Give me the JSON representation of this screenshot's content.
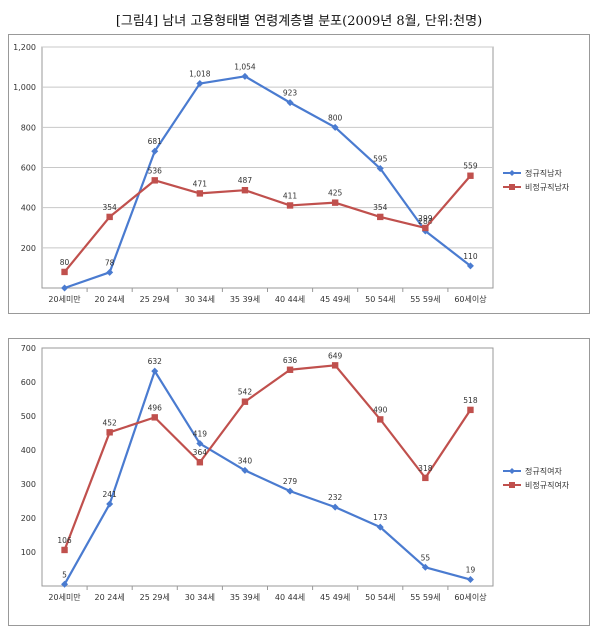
{
  "page_title": "[그림4] 남녀 고용형태별 연령계층별 분포(2009년 8월, 단위:천명)",
  "colors": {
    "regular": "#4a7bd0",
    "nonregular": "#c0504d",
    "grid": "#c8c8c8",
    "plot_bg": "#ffffff"
  },
  "chart_data": [
    {
      "type": "line",
      "title": "",
      "categories": [
        "20세미만",
        "20 24세",
        "25 29세",
        "30 34세",
        "35 39세",
        "40 44세",
        "45 49세",
        "50 54세",
        "55 59세",
        "60세이상"
      ],
      "ylim": [
        0,
        1200
      ],
      "yticks": [
        "",
        "200",
        "400",
        "600",
        "800",
        "1,000",
        "1,200"
      ],
      "yticks_values": [
        0,
        200,
        400,
        600,
        800,
        1000,
        1200
      ],
      "grid": true,
      "legend_position": "right",
      "series": [
        {
          "name": "정규직남자",
          "color": "#4a7bd0",
          "marker": "diamond",
          "values": [
            0,
            78,
            681,
            1018,
            1054,
            923,
            800,
            595,
            284,
            110
          ],
          "labels": [
            "",
            "78",
            "681",
            "1,018",
            "1,054",
            "923",
            "800",
            "595",
            "284",
            "110"
          ]
        },
        {
          "name": "비정규직남자",
          "color": "#c0504d",
          "marker": "square",
          "values": [
            80,
            354,
            536,
            471,
            487,
            411,
            425,
            354,
            299,
            559
          ],
          "labels": [
            "80",
            "354",
            "536",
            "471",
            "487",
            "411",
            "425",
            "354",
            "299",
            "559"
          ]
        }
      ]
    },
    {
      "type": "line",
      "title": "",
      "categories": [
        "20세미만",
        "20 24세",
        "25 29세",
        "30 34세",
        "35 39세",
        "40 44세",
        "45 49세",
        "50 54세",
        "55 59세",
        "60세이상"
      ],
      "ylim": [
        0,
        700
      ],
      "yticks": [
        "",
        "100",
        "200",
        "300",
        "400",
        "500",
        "600",
        "700"
      ],
      "yticks_values": [
        0,
        100,
        200,
        300,
        400,
        500,
        600,
        700
      ],
      "grid": false,
      "legend_position": "right",
      "series": [
        {
          "name": "정규직여자",
          "color": "#4a7bd0",
          "marker": "diamond",
          "values": [
            5,
            241,
            632,
            419,
            340,
            279,
            232,
            173,
            55,
            19
          ],
          "labels": [
            "5",
            "241",
            "632",
            "419",
            "340",
            "279",
            "232",
            "173",
            "55",
            "19"
          ]
        },
        {
          "name": "비정규직여자",
          "color": "#c0504d",
          "marker": "square",
          "values": [
            106,
            452,
            496,
            364,
            542,
            636,
            649,
            490,
            318,
            518
          ],
          "labels": [
            "106",
            "452",
            "496",
            "364",
            "542",
            "636",
            "649",
            "490",
            "318",
            "518"
          ]
        }
      ]
    }
  ]
}
